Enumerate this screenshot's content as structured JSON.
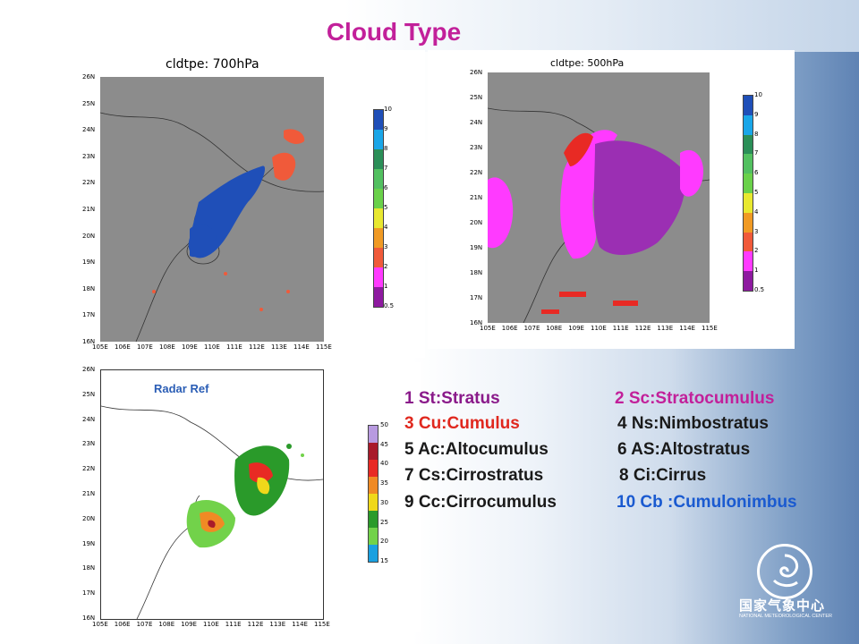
{
  "slide_title": "Cloud Type",
  "panels": {
    "p700": {
      "title": "cldtpe: 700hPa",
      "lat_ticks": [
        "26N",
        "25N",
        "24N",
        "23N",
        "22N",
        "21N",
        "20N",
        "19N",
        "18N",
        "17N",
        "16N"
      ],
      "lon_ticks": [
        "105E",
        "106E",
        "107E",
        "108E",
        "109E",
        "110E",
        "111E",
        "112E",
        "113E",
        "114E",
        "115E"
      ]
    },
    "p500": {
      "title": "cldtpe: 500hPa",
      "lat_ticks": [
        "26N",
        "25N",
        "24N",
        "23N",
        "22N",
        "21N",
        "20N",
        "19N",
        "18N",
        "17N",
        "16N"
      ],
      "lon_ticks": [
        "105E",
        "106E",
        "107E",
        "108E",
        "109E",
        "110E",
        "111E",
        "112E",
        "113E",
        "114E",
        "115E"
      ]
    },
    "radar": {
      "title": "Radar Ref",
      "lat_ticks": [
        "26N",
        "25N",
        "24N",
        "23N",
        "22N",
        "21N",
        "20N",
        "19N",
        "18N",
        "17N",
        "16N"
      ],
      "lon_ticks": [
        "105E",
        "106E",
        "107E",
        "108E",
        "109E",
        "110E",
        "111E",
        "112E",
        "113E",
        "114E",
        "115E"
      ]
    }
  },
  "cloud_colorbar": {
    "labels": [
      "10",
      "9",
      "8",
      "7",
      "6",
      "5",
      "4",
      "3",
      "2",
      "1",
      "0.5"
    ],
    "colors": [
      "#1f4fb8",
      "#1aa6e8",
      "#2b8f58",
      "#52c060",
      "#6ad14a",
      "#e8e830",
      "#f09a24",
      "#f05a3a",
      "#ff3aff",
      "#8e1aa0"
    ]
  },
  "radar_colorbar": {
    "labels": [
      "50",
      "45",
      "40",
      "35",
      "30",
      "25",
      "20",
      "15"
    ],
    "colors": [
      "#b89ae0",
      "#a81a2a",
      "#e82a24",
      "#f08a24",
      "#f0d81a",
      "#2a9a2a",
      "#72d24a",
      "#1aa0e0"
    ]
  },
  "legend": [
    {
      "left": "1 St:Stratus",
      "left_color": "#8a1a8a",
      "right": "2 Sc:Stratocumulus",
      "right_color": "#c2209a"
    },
    {
      "left": "3 Cu:Cumulus",
      "left_color": "#e0281e",
      "right": "4 Ns:Nimbostratus",
      "right_color": "#1a1a1a"
    },
    {
      "left": "5 Ac:Altocumulus",
      "left_color": "#1a1a1a",
      "right": "6 AS:Altostratus",
      "right_color": "#1a1a1a"
    },
    {
      "left": "7 Cs:Cirrostratus",
      "left_color": "#1a1a1a",
      "right": "8 Ci:Cirrus",
      "right_color": "#1a1a1a"
    },
    {
      "left": "9 Cc:Cirrocumulus",
      "left_color": "#1a1a1a",
      "right": "10 Cb :Cumulonimbus",
      "right_color": "#1a5ad0"
    }
  ],
  "logo": {
    "cn": "国家气象中心",
    "en": "NATIONAL METEOROLOGICAL CENTER"
  }
}
